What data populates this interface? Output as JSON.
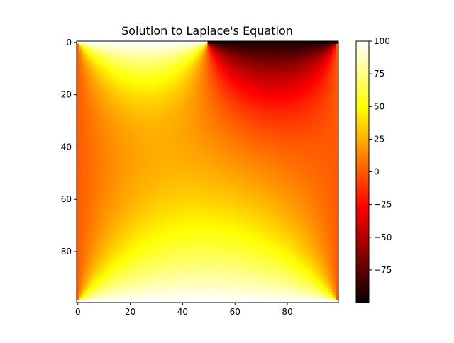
{
  "chart_data": {
    "type": "heatmap",
    "title": "Solution to Laplace's Equation",
    "xlabel": "",
    "ylabel": "",
    "grid": false,
    "colormap": "hot",
    "grid_size": [
      100,
      100
    ],
    "x_ticks": [
      "0",
      "20",
      "40",
      "60",
      "80"
    ],
    "y_ticks": [
      "0",
      "20",
      "40",
      "60",
      "80"
    ],
    "color_range": [
      -100,
      100
    ],
    "colorbar_ticks": [
      "100",
      "75",
      "50",
      "25",
      "0",
      "−25",
      "−50",
      "−75"
    ],
    "colorbar_placement": "right",
    "boundary_conditions": {
      "top_left_half": 100,
      "top_right_half": -100,
      "bottom": 100,
      "left": 0,
      "right": 0
    }
  }
}
